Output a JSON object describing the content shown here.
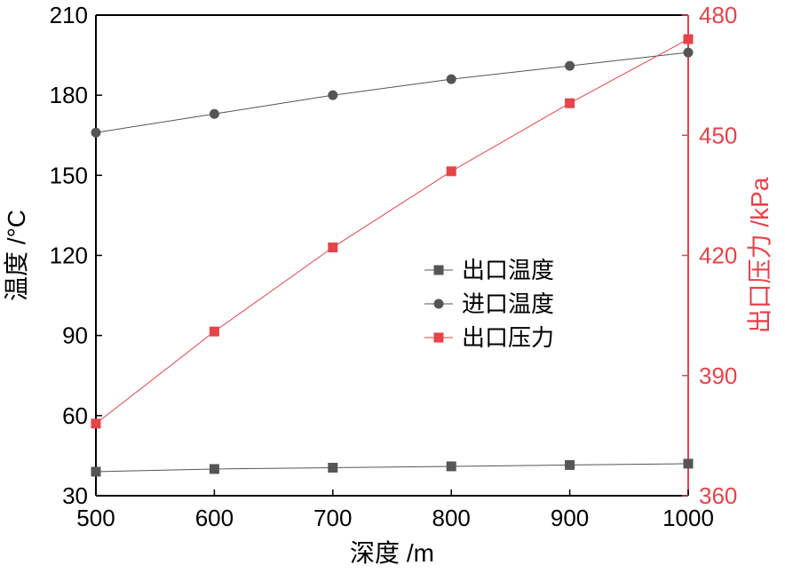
{
  "chart_data": {
    "type": "line",
    "title": "",
    "x": [
      500,
      600,
      700,
      800,
      900,
      1000
    ],
    "xlabel": "深度 /m",
    "xlim": [
      500,
      1000
    ],
    "xticks": [
      500,
      600,
      700,
      800,
      900,
      1000
    ],
    "ylabel_left": "温度 /°C",
    "ylim_left": [
      30,
      210
    ],
    "yticks_left": [
      30,
      60,
      90,
      120,
      150,
      180,
      210
    ],
    "ylabel_right": "出口压力 /kPa",
    "ylim_right": [
      360,
      480
    ],
    "yticks_right": [
      360,
      390,
      420,
      450,
      480
    ],
    "grid": false,
    "legend_position": "center",
    "series": [
      {
        "name": "出口温度",
        "axis": "left",
        "marker": "square",
        "color": "#555555",
        "values": [
          39,
          40,
          40.5,
          41,
          41.5,
          42
        ]
      },
      {
        "name": "进口温度",
        "axis": "left",
        "marker": "circle",
        "color": "#555555",
        "values": [
          166,
          173,
          180,
          186,
          191,
          196
        ]
      },
      {
        "name": "出口压力",
        "axis": "right",
        "marker": "square",
        "color": "#e8424a",
        "values": [
          378,
          401,
          422,
          441,
          458,
          474
        ]
      }
    ]
  },
  "colors": {
    "left_axis": "#000000",
    "right_axis": "#e8424a",
    "dark_series": "#555555",
    "red_series": "#e8424a"
  }
}
